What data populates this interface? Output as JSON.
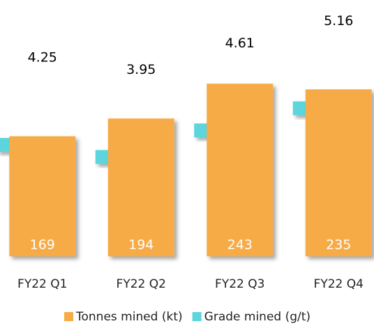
{
  "chart_data": {
    "type": "bar",
    "categories": [
      "FY22 Q1",
      "FY22 Q2",
      "FY22 Q3",
      "FY22 Q4"
    ],
    "series": [
      {
        "name": "Tonnes mined (kt)",
        "color": "#f7ab47",
        "values": [
          169,
          194,
          243,
          235
        ]
      },
      {
        "name": "Grade mined (g/t)",
        "color": "#5dd5dc",
        "axis": "y2",
        "values": [
          4.25,
          3.95,
          4.61,
          5.16
        ]
      }
    ],
    "ylim": [
      0,
      250
    ],
    "y2lim": [
      2,
      6
    ],
    "legend": "bottom"
  }
}
